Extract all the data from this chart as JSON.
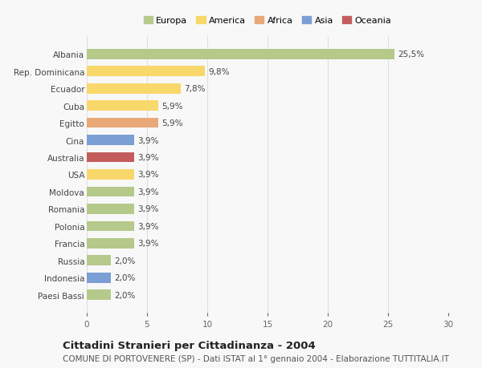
{
  "categories": [
    "Albania",
    "Rep. Dominicana",
    "Ecuador",
    "Cuba",
    "Egitto",
    "Cina",
    "Australia",
    "USA",
    "Moldova",
    "Romania",
    "Polonia",
    "Francia",
    "Russia",
    "Indonesia",
    "Paesi Bassi"
  ],
  "values": [
    25.5,
    9.8,
    7.8,
    5.9,
    5.9,
    3.9,
    3.9,
    3.9,
    3.9,
    3.9,
    3.9,
    3.9,
    2.0,
    2.0,
    2.0
  ],
  "labels": [
    "25,5%",
    "9,8%",
    "7,8%",
    "5,9%",
    "5,9%",
    "3,9%",
    "3,9%",
    "3,9%",
    "3,9%",
    "3,9%",
    "3,9%",
    "3,9%",
    "2,0%",
    "2,0%",
    "2,0%"
  ],
  "colors": [
    "#b5c98a",
    "#f8d76b",
    "#f8d76b",
    "#f8d76b",
    "#e8a878",
    "#7a9fd4",
    "#c45c5c",
    "#f8d76b",
    "#b5c98a",
    "#b5c98a",
    "#b5c98a",
    "#b5c98a",
    "#b5c98a",
    "#7a9fd4",
    "#b5c98a"
  ],
  "legend": {
    "Europa": "#b5c98a",
    "America": "#f8d76b",
    "Africa": "#e8a878",
    "Asia": "#7a9fd4",
    "Oceania": "#c45c5c"
  },
  "xlim": [
    0,
    30
  ],
  "xticks": [
    0,
    5,
    10,
    15,
    20,
    25,
    30
  ],
  "title": "Cittadini Stranieri per Cittadinanza - 2004",
  "subtitle": "COMUNE DI PORTOVENERE (SP) - Dati ISTAT al 1° gennaio 2004 - Elaborazione TUTTITALIA.IT",
  "background_color": "#f8f8f8",
  "grid_color": "#e0e0e0",
  "bar_height": 0.6,
  "label_fontsize": 7.5,
  "ytick_fontsize": 7.5,
  "xtick_fontsize": 7.5,
  "title_fontsize": 9.5,
  "subtitle_fontsize": 7.5,
  "legend_fontsize": 8.0
}
